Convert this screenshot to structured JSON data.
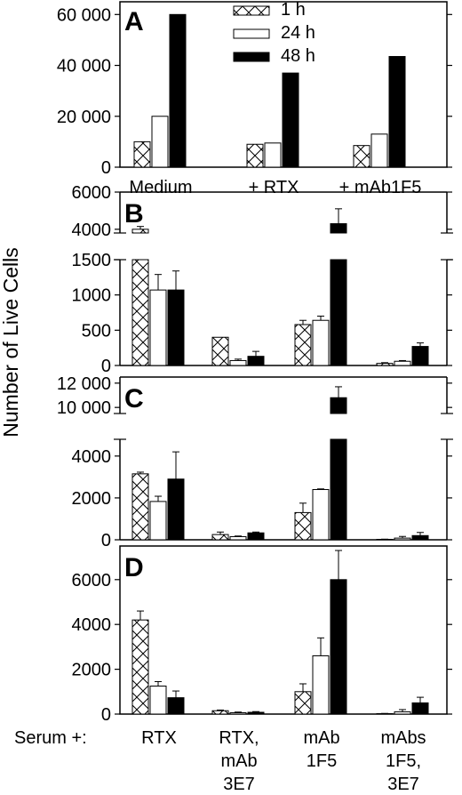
{
  "figure": {
    "ylabel": "Number of Live Cells",
    "serum_label": "Serum +:",
    "bottom_categories": [
      [
        "RTX"
      ],
      [
        "RTX,",
        "mAb",
        "3E7"
      ],
      [
        "mAb",
        "1F5"
      ],
      [
        "mAbs",
        "1F5,",
        "3E7"
      ]
    ],
    "legend": [
      "1 h",
      "24 h",
      "48 h"
    ]
  },
  "chart_data": [
    {
      "panel": "A",
      "type": "bar",
      "categories": [
        "Medium",
        "+ RTX",
        "+ mAb1F5"
      ],
      "ylim": [
        0,
        65000
      ],
      "yticks": [
        "0",
        "20 000",
        "40 000",
        "60 000"
      ],
      "series": [
        {
          "name": "1 h",
          "values": [
            10000,
            9000,
            8500
          ]
        },
        {
          "name": "24 h",
          "values": [
            20000,
            9500,
            13000
          ]
        },
        {
          "name": "48 h",
          "values": [
            60000,
            37000,
            43500
          ]
        }
      ]
    },
    {
      "panel": "B",
      "type": "bar",
      "broken_axis": true,
      "categories": [
        "RTX",
        "RTX, mAb 3E7",
        "mAb 1F5",
        "mAbs 1F5, 3E7"
      ],
      "ylim_lower": [
        0,
        1500
      ],
      "ylim_upper": [
        3800,
        6000
      ],
      "yticks_lower": [
        "0",
        "500",
        "1000",
        "1500"
      ],
      "yticks_upper": [
        "4000",
        "6000"
      ],
      "series": [
        {
          "name": "1 h",
          "values": [
            4000,
            400,
            580,
            30
          ],
          "errors": [
            150,
            0,
            60,
            10
          ]
        },
        {
          "name": "24 h",
          "values": [
            1070,
            70,
            640,
            60
          ],
          "errors": [
            220,
            20,
            60,
            10
          ]
        },
        {
          "name": "48 h",
          "values": [
            1070,
            130,
            4300,
            270
          ],
          "errors": [
            270,
            70,
            800,
            50
          ]
        }
      ]
    },
    {
      "panel": "C",
      "type": "bar",
      "broken_axis": true,
      "categories": [
        "RTX",
        "RTX, mAb 3E7",
        "mAb 1F5",
        "mAbs 1F5, 3E7"
      ],
      "ylim_lower": [
        0,
        4800
      ],
      "ylim_upper": [
        9500,
        12500
      ],
      "yticks_lower": [
        "0",
        "2000",
        "4000"
      ],
      "yticks_upper": [
        "10 000",
        "12 000"
      ],
      "series": [
        {
          "name": "1 h",
          "values": [
            3150,
            250,
            1300,
            20
          ],
          "errors": [
            80,
            120,
            450,
            10
          ]
        },
        {
          "name": "24 h",
          "values": [
            1830,
            150,
            2400,
            80
          ],
          "errors": [
            250,
            30,
            30,
            80
          ]
        },
        {
          "name": "48 h",
          "values": [
            2900,
            330,
            10800,
            200
          ],
          "errors": [
            1300,
            40,
            900,
            150
          ]
        }
      ]
    },
    {
      "panel": "D",
      "type": "bar",
      "categories": [
        "RTX",
        "RTX, mAb 3E7",
        "mAb 1F5",
        "mAbs 1F5, 3E7"
      ],
      "ylim": [
        0,
        7500
      ],
      "yticks": [
        "0",
        "2000",
        "4000",
        "6000"
      ],
      "series": [
        {
          "name": "1 h",
          "values": [
            4200,
            150,
            1000,
            20
          ],
          "errors": [
            400,
            30,
            350,
            10
          ]
        },
        {
          "name": "24 h",
          "values": [
            1250,
            60,
            2600,
            100
          ],
          "errors": [
            200,
            30,
            800,
            100
          ]
        },
        {
          "name": "48 h",
          "values": [
            730,
            80,
            6000,
            500
          ],
          "errors": [
            300,
            30,
            1300,
            250
          ]
        }
      ]
    }
  ]
}
